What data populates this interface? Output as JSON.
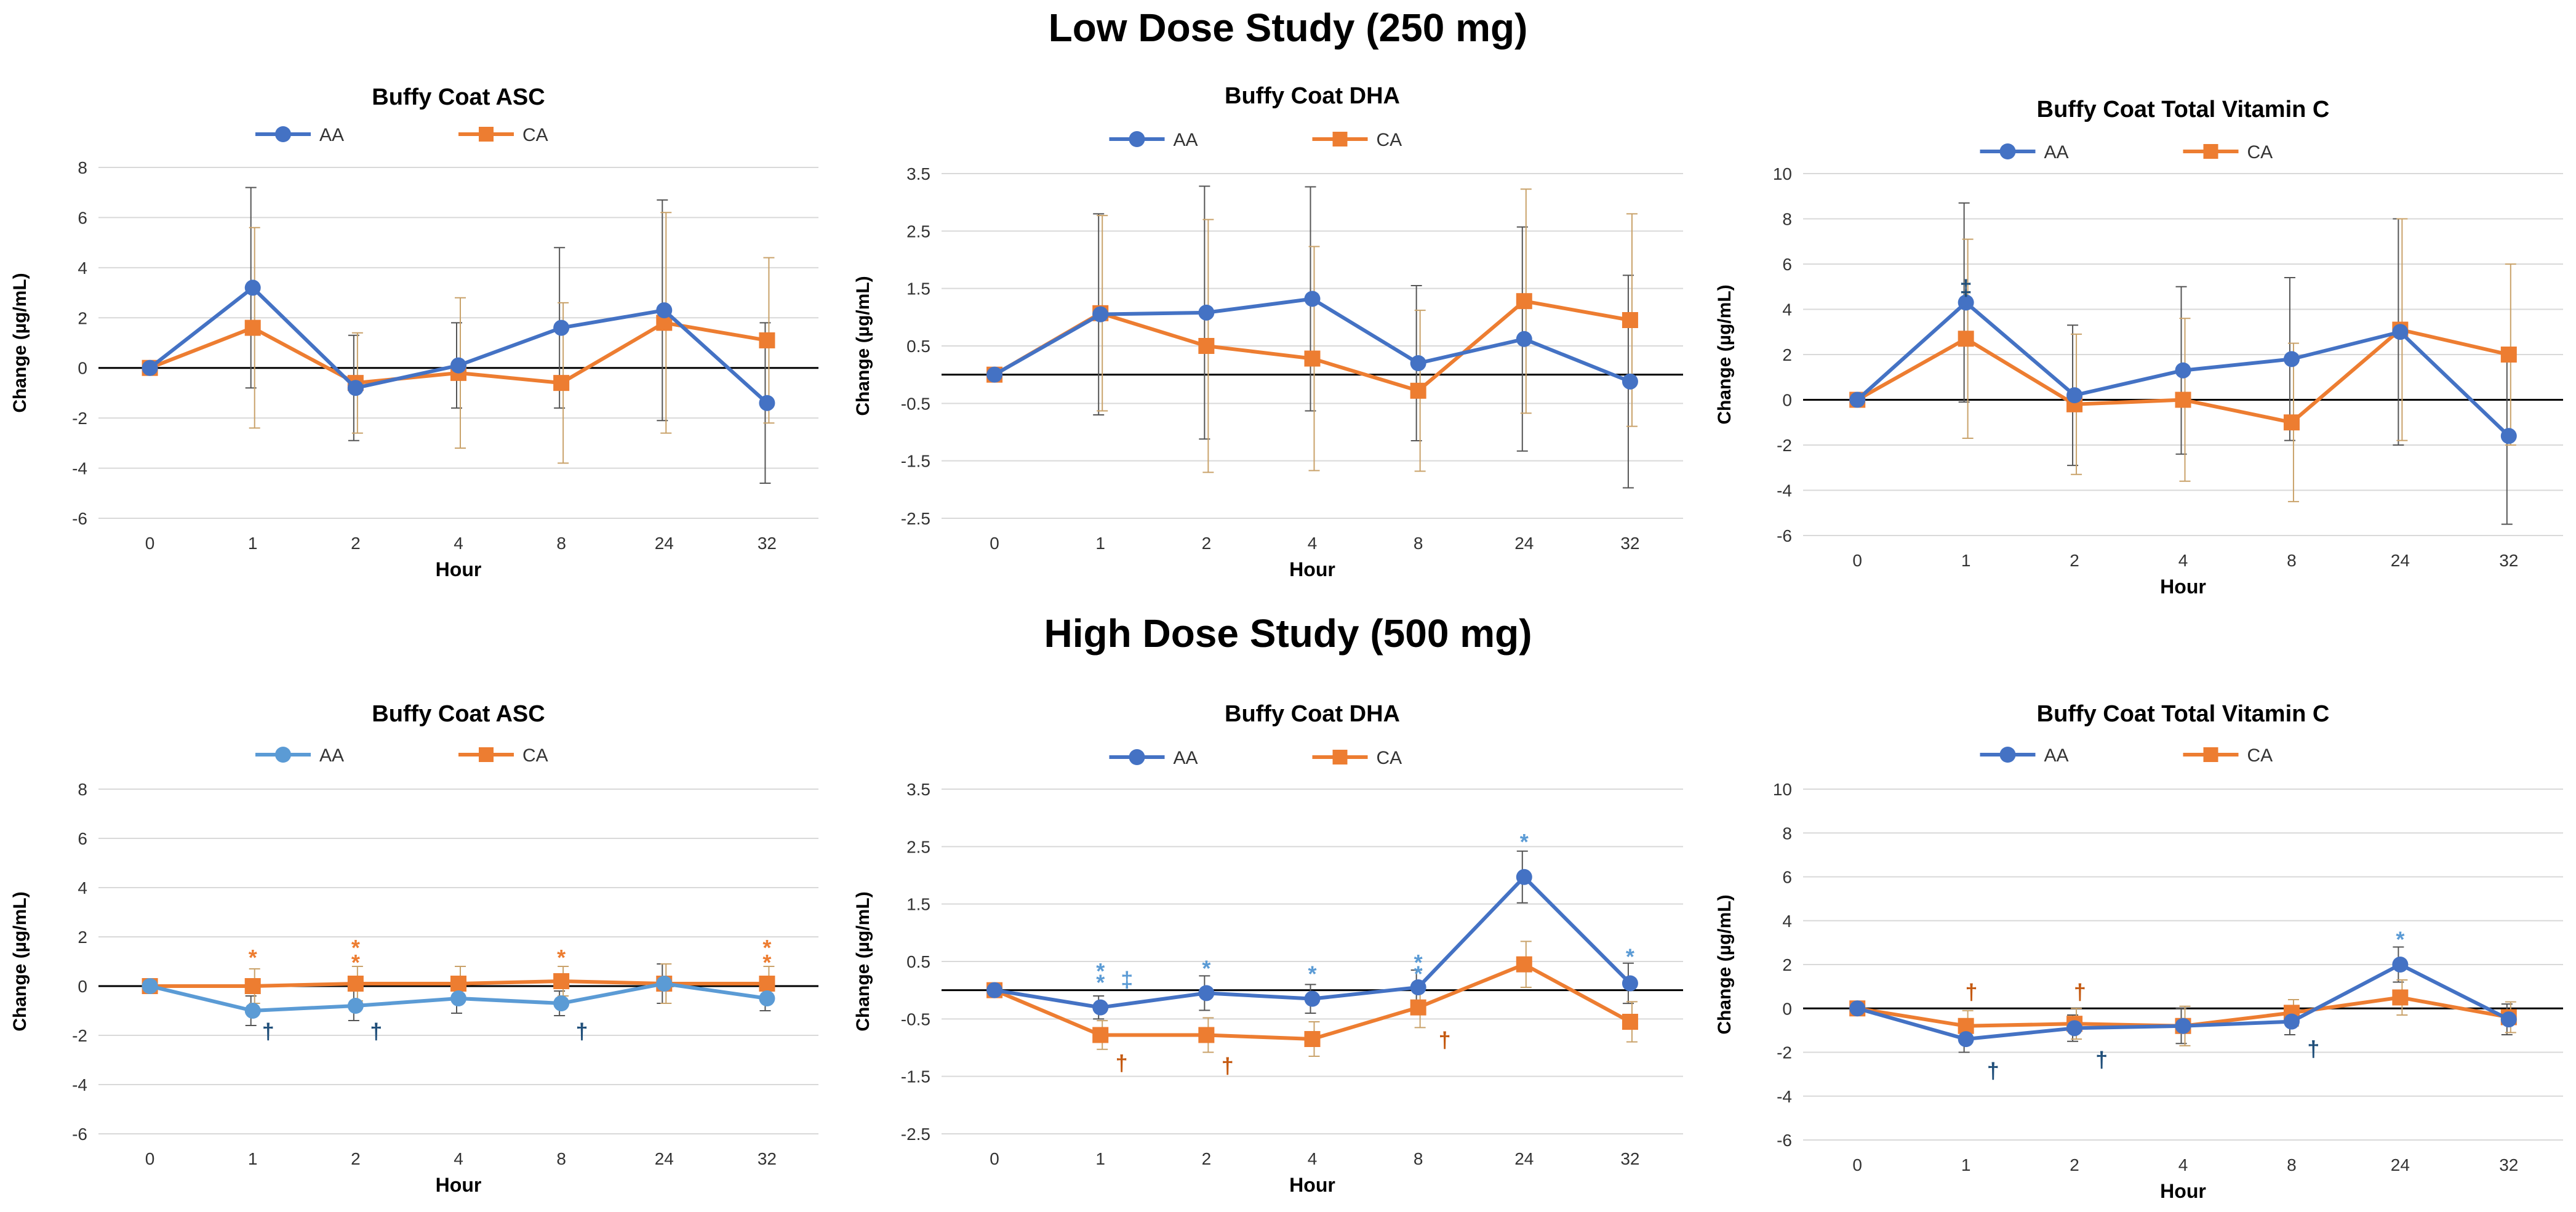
{
  "sections": {
    "low": "Low Dose Study (250 mg)",
    "high": "High Dose Study (500 mg)"
  },
  "colors": {
    "aa": "#4472C4",
    "aa_light": "#5B9BD5",
    "ca": "#ED7D31",
    "ca_marker": "#C55A11",
    "dagger": "#1F4E79"
  },
  "chart_data": [
    {
      "type": "line",
      "panel": "low-asc",
      "title": "Buffy Coat ASC",
      "xlabel": "Hour",
      "ylabel": "Change (µg/mL)",
      "categories": [
        "0",
        "1",
        "2",
        "4",
        "8",
        "24",
        "32"
      ],
      "ylim": [
        -6,
        8
      ],
      "yticks": [
        -6,
        -4,
        -2,
        0,
        2,
        4,
        6,
        8
      ],
      "ytick_labels": [
        "-6",
        "-4",
        "-2",
        "0",
        "2",
        "4",
        "6",
        "8"
      ],
      "series": [
        {
          "name": "AA",
          "marker": "circle",
          "values": [
            0,
            3.2,
            -0.8,
            0.1,
            1.6,
            2.3,
            -1.4
          ],
          "errors": [
            0,
            4.0,
            2.1,
            1.7,
            3.2,
            4.4,
            3.2
          ]
        },
        {
          "name": "CA",
          "marker": "square",
          "values": [
            0,
            1.6,
            -0.6,
            -0.2,
            -0.6,
            1.8,
            1.1
          ],
          "errors": [
            0,
            4.0,
            2.0,
            3.0,
            3.2,
            4.4,
            3.3
          ]
        }
      ],
      "annotations": []
    },
    {
      "type": "line",
      "panel": "low-dha",
      "title": "Buffy Coat DHA",
      "xlabel": "Hour",
      "ylabel": "Change (µg/mL)",
      "categories": [
        "0",
        "1",
        "2",
        "4",
        "8",
        "24",
        "32"
      ],
      "ylim": [
        -2.5,
        3.5
      ],
      "yticks": [
        -2.5,
        -1.5,
        -0.5,
        0.5,
        1.5,
        2.5,
        3.5
      ],
      "ytick_labels": [
        "-2.5",
        "-1.5",
        "-0.5",
        "0.5",
        "1.5",
        "2.5",
        "3.5"
      ],
      "series": [
        {
          "name": "AA",
          "marker": "circle",
          "values": [
            0,
            1.05,
            1.08,
            1.32,
            0.2,
            0.62,
            -0.12
          ],
          "errors": [
            0,
            1.75,
            2.2,
            1.95,
            1.35,
            1.95,
            1.85
          ]
        },
        {
          "name": "CA",
          "marker": "square",
          "values": [
            0,
            1.07,
            0.5,
            0.28,
            -0.28,
            1.28,
            0.95
          ],
          "errors": [
            0,
            1.7,
            2.2,
            1.95,
            1.4,
            1.95,
            1.85
          ]
        }
      ],
      "annotations": []
    },
    {
      "type": "line",
      "panel": "low-total",
      "title": "Buffy Coat Total Vitamin C",
      "xlabel": "Hour",
      "ylabel": "Change (µg/mL)",
      "categories": [
        "0",
        "1",
        "2",
        "4",
        "8",
        "24",
        "32"
      ],
      "ylim": [
        -6,
        10
      ],
      "yticks": [
        -6,
        -4,
        -2,
        0,
        2,
        4,
        6,
        8,
        10
      ],
      "ytick_labels": [
        "-6",
        "-4",
        "-2",
        "0",
        "2",
        "4",
        "6",
        "8",
        "10"
      ],
      "series": [
        {
          "name": "AA",
          "marker": "circle",
          "values": [
            0,
            4.3,
            0.2,
            1.3,
            1.8,
            3.0,
            -1.6
          ],
          "errors": [
            0,
            4.4,
            3.1,
            3.7,
            3.6,
            5.0,
            3.9
          ]
        },
        {
          "name": "CA",
          "marker": "square",
          "values": [
            0,
            2.7,
            -0.2,
            0.0,
            -1.0,
            3.1,
            2.0
          ],
          "errors": [
            0,
            4.4,
            3.1,
            3.6,
            3.5,
            4.9,
            4.0
          ]
        }
      ],
      "annotations": [
        {
          "text": "‡",
          "x": 1,
          "y": 5.0,
          "color": "dagger"
        }
      ]
    },
    {
      "type": "line",
      "panel": "high-asc",
      "title": "Buffy Coat ASC",
      "xlabel": "Hour",
      "ylabel": "Change (µg/mL)",
      "categories": [
        "0",
        "1",
        "2",
        "4",
        "8",
        "24",
        "32"
      ],
      "ylim": [
        -6,
        8
      ],
      "yticks": [
        -6,
        -4,
        -2,
        0,
        2,
        4,
        6,
        8
      ],
      "ytick_labels": [
        "-6",
        "-4",
        "-2",
        "0",
        "2",
        "4",
        "6",
        "8"
      ],
      "series": [
        {
          "name": "AA",
          "marker": "circle",
          "light": true,
          "values": [
            0,
            -1.0,
            -0.8,
            -0.5,
            -0.7,
            0.1,
            -0.5
          ],
          "errors": [
            0,
            0.6,
            0.6,
            0.6,
            0.5,
            0.8,
            0.5
          ]
        },
        {
          "name": "CA",
          "marker": "square",
          "values": [
            0,
            0.0,
            0.1,
            0.1,
            0.2,
            0.1,
            0.1
          ],
          "errors": [
            0,
            0.7,
            0.7,
            0.7,
            0.6,
            0.8,
            0.7
          ]
        }
      ],
      "annotations": [
        {
          "text": "*",
          "x": 1,
          "y": 1.2,
          "color": "ca"
        },
        {
          "text": "*",
          "x": 2,
          "y": 1.6,
          "color": "ca"
        },
        {
          "text": "*",
          "x": 2,
          "y": 1.0,
          "color": "ca"
        },
        {
          "text": "*",
          "x": 4,
          "y": 1.2,
          "color": "ca"
        },
        {
          "text": "*",
          "x": 6,
          "y": 1.6,
          "color": "ca"
        },
        {
          "text": "*",
          "x": 6,
          "y": 1.0,
          "color": "ca"
        },
        {
          "text": "†",
          "x": 1.15,
          "y": -1.8,
          "color": "dagger"
        },
        {
          "text": "†",
          "x": 2.2,
          "y": -1.8,
          "color": "dagger"
        },
        {
          "text": "†",
          "x": 4.2,
          "y": -1.8,
          "color": "dagger"
        }
      ]
    },
    {
      "type": "line",
      "panel": "high-dha",
      "title": "Buffy Coat DHA",
      "xlabel": "Hour",
      "ylabel": "Change (µg/mL)",
      "categories": [
        "0",
        "1",
        "2",
        "4",
        "8",
        "24",
        "32"
      ],
      "ylim": [
        -2.5,
        3.5
      ],
      "yticks": [
        -2.5,
        -1.5,
        -0.5,
        0.5,
        1.5,
        2.5,
        3.5
      ],
      "ytick_labels": [
        "-2.5",
        "-1.5",
        "-0.5",
        "0.5",
        "1.5",
        "2.5",
        "3.5"
      ],
      "series": [
        {
          "name": "AA",
          "marker": "circle",
          "values": [
            0,
            -0.3,
            -0.05,
            -0.15,
            0.05,
            1.97,
            0.12
          ],
          "errors": [
            0,
            0.2,
            0.3,
            0.25,
            0.3,
            0.45,
            0.35
          ]
        },
        {
          "name": "CA",
          "marker": "square",
          "values": [
            0,
            -0.78,
            -0.78,
            -0.85,
            -0.3,
            0.45,
            -0.55
          ],
          "errors": [
            0,
            0.25,
            0.3,
            0.3,
            0.35,
            0.4,
            0.35
          ]
        }
      ],
      "annotations": [
        {
          "text": "*",
          "x": 1,
          "y": 0.35,
          "color": "aa_light"
        },
        {
          "text": "*",
          "x": 1,
          "y": 0.15,
          "color": "aa_light"
        },
        {
          "text": "‡",
          "x": 1.25,
          "y": 0.2,
          "color": "aa_light"
        },
        {
          "text": "*",
          "x": 2,
          "y": 0.4,
          "color": "aa_light"
        },
        {
          "text": "*",
          "x": 3,
          "y": 0.3,
          "color": "aa_light"
        },
        {
          "text": "*",
          "x": 4,
          "y": 0.5,
          "color": "aa_light"
        },
        {
          "text": "*",
          "x": 4,
          "y": 0.3,
          "color": "aa_light"
        },
        {
          "text": "*",
          "x": 5,
          "y": 2.6,
          "color": "aa_light"
        },
        {
          "text": "*",
          "x": 6,
          "y": 0.6,
          "color": "aa_light"
        },
        {
          "text": "†",
          "x": 1.2,
          "y": -1.25,
          "color": "ca_marker"
        },
        {
          "text": "†",
          "x": 2.2,
          "y": -1.3,
          "color": "ca_marker"
        },
        {
          "text": "†",
          "x": 4.25,
          "y": -0.85,
          "color": "ca_marker"
        }
      ]
    },
    {
      "type": "line",
      "panel": "high-total",
      "title": "Buffy Coat Total Vitamin C",
      "xlabel": "Hour",
      "ylabel": "Change (µg/mL)",
      "categories": [
        "0",
        "1",
        "2",
        "4",
        "8",
        "24",
        "32"
      ],
      "ylim": [
        -6,
        10
      ],
      "yticks": [
        -6,
        -4,
        -2,
        0,
        2,
        4,
        6,
        8,
        10
      ],
      "ytick_labels": [
        "-6",
        "-4",
        "-2",
        "0",
        "2",
        "4",
        "6",
        "8",
        "10"
      ],
      "series": [
        {
          "name": "AA",
          "marker": "circle",
          "values": [
            0,
            -1.4,
            -0.9,
            -0.8,
            -0.6,
            2.0,
            -0.5
          ],
          "errors": [
            0,
            0.6,
            0.6,
            0.8,
            0.6,
            0.8,
            0.7
          ]
        },
        {
          "name": "CA",
          "marker": "square",
          "values": [
            0,
            -0.8,
            -0.7,
            -0.8,
            -0.2,
            0.5,
            -0.4
          ],
          "errors": [
            0,
            0.7,
            0.7,
            0.9,
            0.6,
            0.8,
            0.7
          ]
        }
      ],
      "annotations": [
        {
          "text": "†",
          "x": 1.05,
          "y": 0.8,
          "color": "ca_marker"
        },
        {
          "text": "†",
          "x": 2.05,
          "y": 0.8,
          "color": "ca_marker"
        },
        {
          "text": "*",
          "x": 5,
          "y": 3.2,
          "color": "aa_light"
        },
        {
          "text": "†",
          "x": 1.25,
          "y": -2.8,
          "color": "dagger"
        },
        {
          "text": "†",
          "x": 2.25,
          "y": -2.3,
          "color": "dagger"
        },
        {
          "text": "†",
          "x": 4.2,
          "y": -1.8,
          "color": "dagger"
        }
      ]
    }
  ]
}
